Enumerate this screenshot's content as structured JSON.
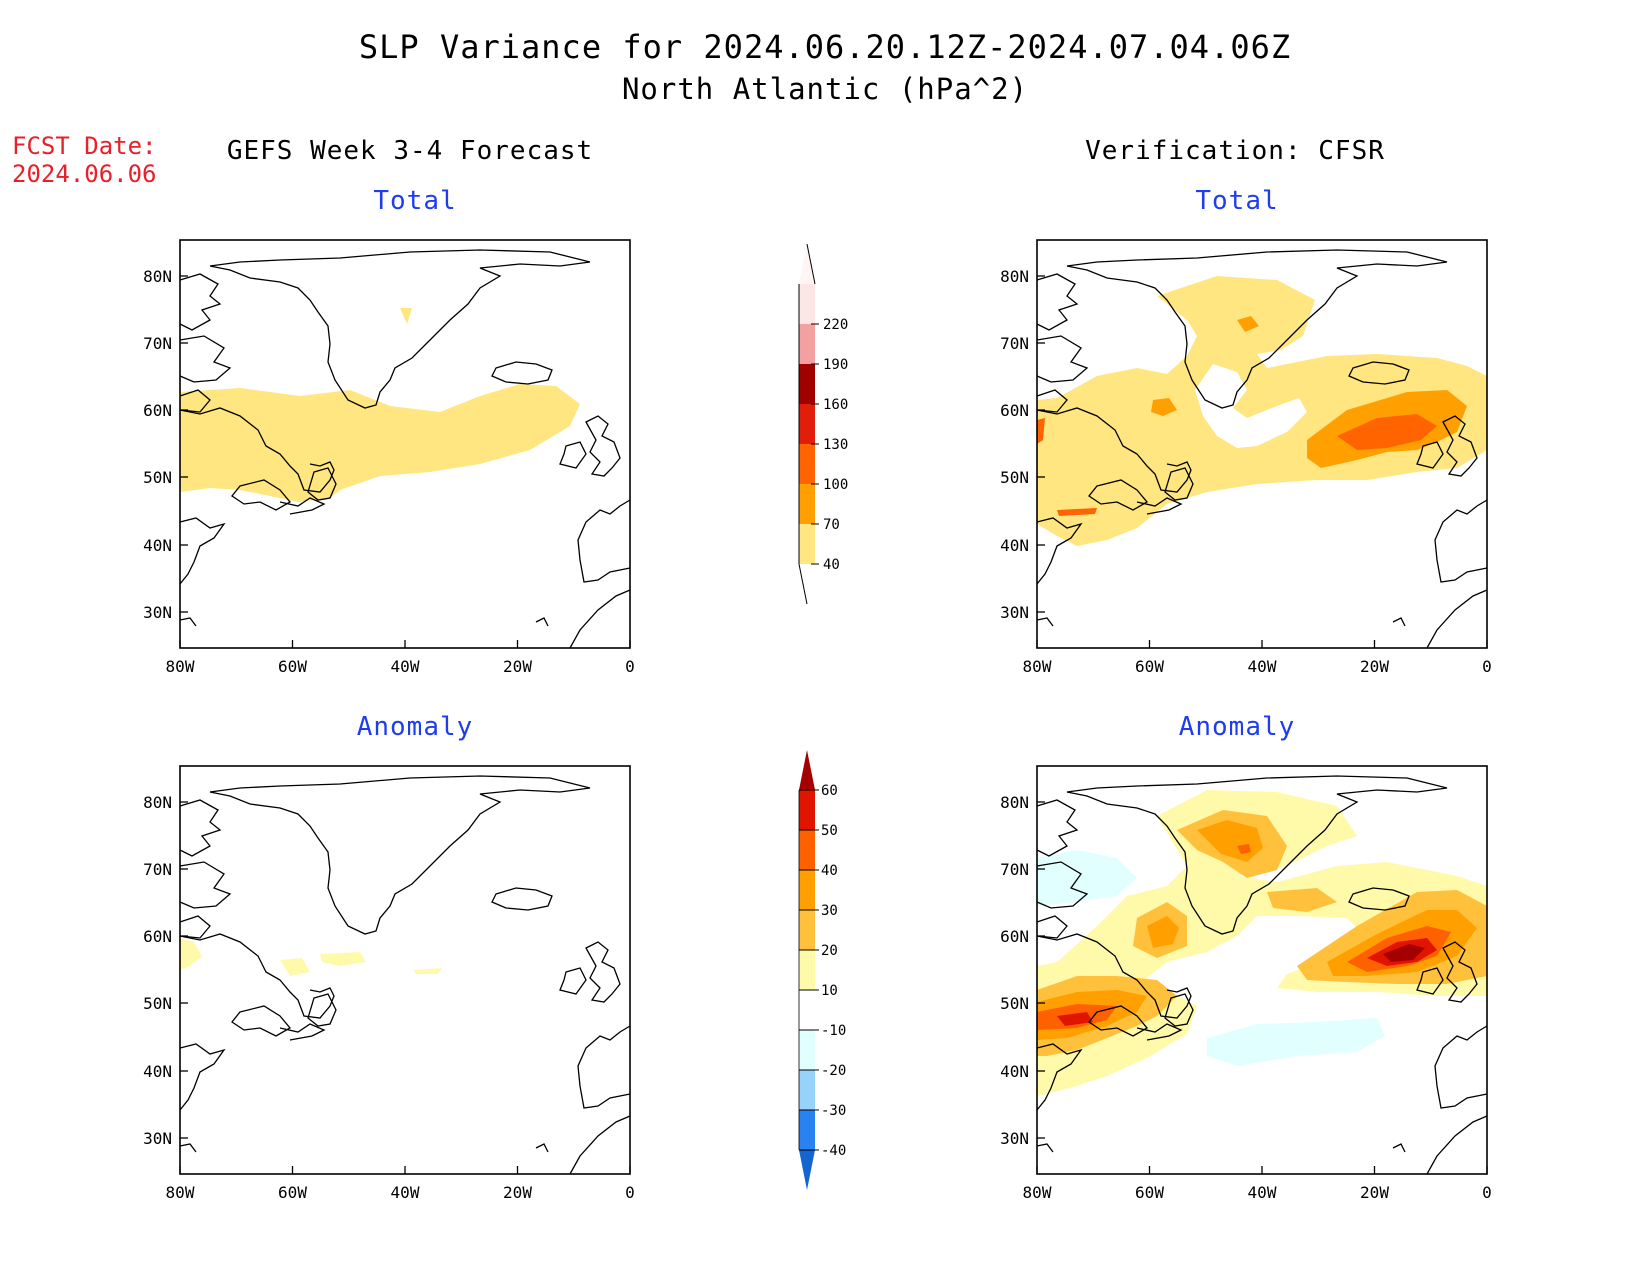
{
  "header": {
    "title": "SLP Variance for 2024.06.20.12Z-2024.07.04.06Z",
    "subtitle": "North Atlantic (hPa^2)",
    "fcst_label": "FCST Date:",
    "fcst_date": "2024.06.06"
  },
  "columns": {
    "left": "GEFS Week 3-4 Forecast",
    "right": "Verification: CFSR"
  },
  "panels": {
    "top_left": "Total",
    "top_right": "Total",
    "bottom_left": "Anomaly",
    "bottom_right": "Anomaly"
  },
  "axes": {
    "x_ticks": [
      "80W",
      "60W",
      "40W",
      "20W",
      "0"
    ],
    "y_ticks": [
      "80N",
      "70N",
      "60N",
      "50N",
      "40N",
      "30N"
    ]
  },
  "colorbars": {
    "total": {
      "labels": [
        "40",
        "70",
        "100",
        "130",
        "160",
        "190",
        "220"
      ],
      "colors": [
        "#ffe680",
        "#ffa000",
        "#ff6400",
        "#e01e0a",
        "#a00000",
        "#f5a0a0",
        "#fde6e6"
      ]
    },
    "anomaly": {
      "labels": [
        "-40",
        "-30",
        "-20",
        "-10",
        "10",
        "20",
        "30",
        "40",
        "50",
        "60"
      ],
      "colors": [
        "#1464d2",
        "#2882f0",
        "#96d2fa",
        "#e1ffff",
        "#ffffff",
        "#fffaaa",
        "#ffc03c",
        "#ffa000",
        "#ff6000",
        "#e11400",
        "#a50000"
      ]
    }
  }
}
